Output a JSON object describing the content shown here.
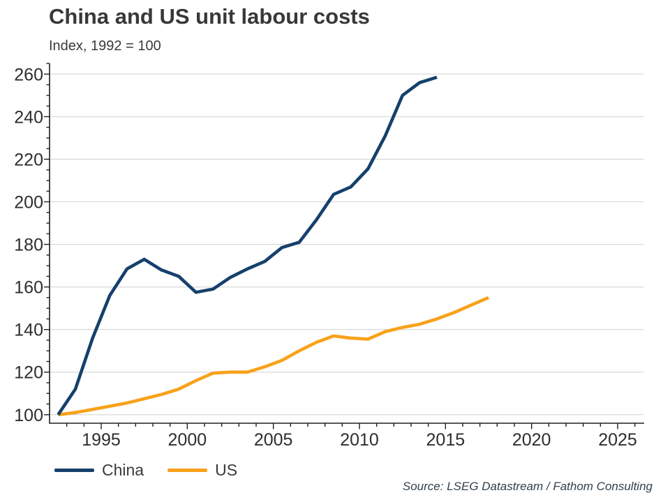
{
  "header": {
    "title": "China and US unit labour costs",
    "subtitle": "Index, 1992 = 100"
  },
  "source": "Source: LSEG Datastream / Fathom Consulting",
  "colors": {
    "china": "#16406C",
    "us": "#F7A21B",
    "grid": "#D9D9D9",
    "axis": "#1F1F1F",
    "tick_label": "#2E2E2E",
    "title_text": "#383838",
    "source_text": "#31404D"
  },
  "legend": {
    "position": "bottom-left",
    "items": [
      {
        "label": "China"
      },
      {
        "label": "US"
      }
    ]
  },
  "chart_data": {
    "type": "line",
    "title": "China and US unit labour costs",
    "subtitle": "Index, 1992 = 100",
    "grid": "horizontal-only",
    "x_axis": {
      "min": 1992,
      "max": 2026.5,
      "major_ticks": [
        1995,
        2000,
        2005,
        2010,
        2015,
        2020,
        2025
      ],
      "minor_tick_step": 1
    },
    "y_axis": {
      "min": 96,
      "max": 265,
      "major_ticks": [
        100,
        120,
        140,
        160,
        180,
        200,
        220,
        240,
        260
      ],
      "minor_tick_step": 5
    },
    "point_offset": 0.5,
    "series": [
      {
        "name": "US",
        "color": "#F7A21B",
        "years": [
          1992,
          1993,
          1994,
          1995,
          1996,
          1997,
          1998,
          1999,
          2000,
          2001,
          2002,
          2003,
          2004,
          2005,
          2006,
          2007,
          2008,
          2009,
          2010,
          2011,
          2012,
          2013,
          2014,
          2015,
          2016,
          2017
        ],
        "values": [
          100,
          101,
          102.5,
          104,
          105.5,
          107.5,
          109.5,
          112,
          116,
          119.5,
          120,
          120,
          122.5,
          125.5,
          130,
          134,
          137,
          136,
          135.5,
          139,
          141,
          142.5,
          145,
          148,
          151.5,
          155
        ]
      },
      {
        "name": "China",
        "color": "#16406C",
        "years": [
          1992,
          1993,
          1994,
          1995,
          1996,
          1997,
          1998,
          1999,
          2000,
          2001,
          2002,
          2003,
          2004,
          2005,
          2006,
          2007,
          2008,
          2009,
          2010,
          2011,
          2012,
          2013,
          2014
        ],
        "values": [
          100,
          112,
          136,
          156,
          168.5,
          173,
          168,
          165,
          157.5,
          159,
          164.5,
          168.5,
          172,
          178.5,
          181,
          191.5,
          203.5,
          207,
          215.5,
          231,
          250,
          256,
          258.5
        ]
      }
    ]
  }
}
